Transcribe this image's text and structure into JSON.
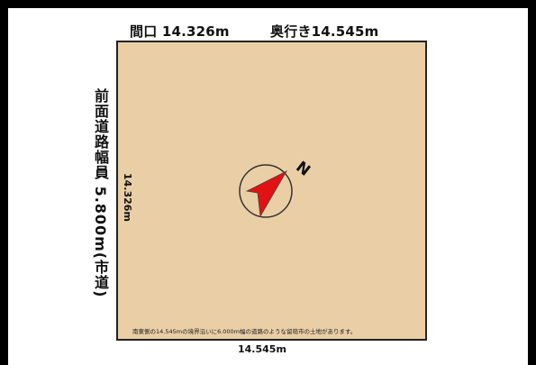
{
  "labels": {
    "frontage": "間口 14.326m",
    "depth": "奥行き14.545m",
    "road": "前面道路幅員 5.800m(市道)",
    "left_side": "14.326m",
    "bottom_side": "14.545m",
    "note": "南東側の14.545mの境界沿いに6.000m幅の道路のような留萌市の土地があります。",
    "north": "N"
  },
  "colors": {
    "lot_fill": "#eacfa6",
    "arrow": "#e31212"
  },
  "icons": {
    "compass": "north-arrow-icon"
  }
}
